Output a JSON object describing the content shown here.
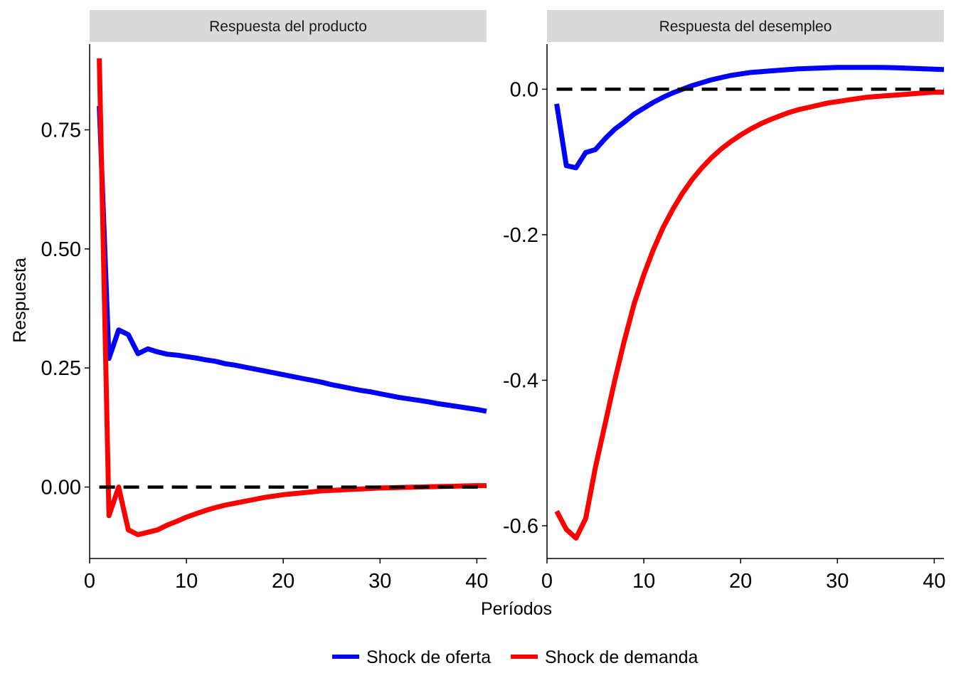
{
  "chart_data": {
    "type": "line",
    "x_title": "Períodos",
    "y_title": "Respuesta",
    "legend": {
      "position": "bottom",
      "items": [
        {
          "label": "Shock de oferta",
          "color": "#0000ff"
        },
        {
          "label": "Shock de demanda",
          "color": "#ff0000"
        }
      ]
    },
    "grid": false,
    "reference_line": {
      "y": 0,
      "style": "dashed",
      "color": "#000000"
    },
    "panels": [
      {
        "id": "producto",
        "title": "Respuesta del producto",
        "xlim": [
          0,
          41
        ],
        "ylim": [
          -0.15,
          0.93
        ],
        "x_ticks": [
          0,
          10,
          20,
          30,
          40
        ],
        "y_ticks": [
          0.0,
          0.25,
          0.5,
          0.75
        ],
        "y_tick_labels": [
          "0.00",
          "0.25",
          "0.50",
          "0.75"
        ],
        "series": [
          {
            "name": "Shock de oferta",
            "color": "#0000ff",
            "x": [
              1,
              2,
              3,
              4,
              5,
              6,
              7,
              8,
              9,
              10,
              11,
              12,
              13,
              14,
              15,
              16,
              17,
              18,
              19,
              20,
              21,
              22,
              23,
              24,
              25,
              26,
              27,
              28,
              29,
              30,
              31,
              32,
              33,
              34,
              35,
              36,
              37,
              38,
              39,
              40,
              41
            ],
            "y": [
              0.8,
              0.27,
              0.33,
              0.32,
              0.28,
              0.29,
              0.284,
              0.279,
              0.277,
              0.274,
              0.271,
              0.267,
              0.264,
              0.259,
              0.256,
              0.252,
              0.248,
              0.244,
              0.24,
              0.236,
              0.232,
              0.228,
              0.224,
              0.22,
              0.215,
              0.211,
              0.207,
              0.203,
              0.2,
              0.196,
              0.192,
              0.188,
              0.185,
              0.182,
              0.179,
              0.175,
              0.172,
              0.169,
              0.166,
              0.163,
              0.159
            ]
          },
          {
            "name": "Shock de demanda",
            "color": "#ff0000",
            "x": [
              1,
              2,
              3,
              4,
              5,
              6,
              7,
              8,
              9,
              10,
              11,
              12,
              13,
              14,
              15,
              16,
              17,
              18,
              19,
              20,
              21,
              22,
              23,
              24,
              25,
              26,
              27,
              28,
              29,
              30,
              31,
              32,
              33,
              34,
              35,
              36,
              37,
              38,
              39,
              40,
              41
            ],
            "y": [
              0.9,
              -0.06,
              0.0,
              -0.09,
              -0.1,
              -0.095,
              -0.09,
              -0.08,
              -0.072,
              -0.063,
              -0.056,
              -0.049,
              -0.043,
              -0.038,
              -0.034,
              -0.03,
              -0.026,
              -0.022,
              -0.019,
              -0.016,
              -0.014,
              -0.012,
              -0.01,
              -0.008,
              -0.007,
              -0.006,
              -0.005,
              -0.004,
              -0.003,
              -0.002,
              -0.0015,
              -0.001,
              -0.0005,
              0.0,
              0.0005,
              0.001,
              0.0015,
              0.002,
              0.0025,
              0.003,
              0.003
            ]
          }
        ]
      },
      {
        "id": "desempleo",
        "title": "Respuesta del desempleo",
        "xlim": [
          0,
          41
        ],
        "ylim": [
          -0.645,
          0.062
        ],
        "x_ticks": [
          0,
          10,
          20,
          30,
          40
        ],
        "y_ticks": [
          0.0,
          -0.2,
          -0.4,
          -0.6
        ],
        "y_tick_labels": [
          "0.0",
          "-0.2",
          "-0.4",
          "-0.6"
        ],
        "series": [
          {
            "name": "Shock de oferta",
            "color": "#0000ff",
            "x": [
              1,
              2,
              3,
              4,
              5,
              6,
              7,
              8,
              9,
              10,
              11,
              12,
              13,
              14,
              15,
              16,
              17,
              18,
              19,
              20,
              21,
              22,
              23,
              24,
              25,
              26,
              27,
              28,
              29,
              30,
              31,
              32,
              33,
              34,
              35,
              36,
              37,
              38,
              39,
              40,
              41
            ],
            "y": [
              -0.02,
              -0.105,
              -0.108,
              -0.087,
              -0.083,
              -0.068,
              -0.055,
              -0.045,
              -0.034,
              -0.026,
              -0.018,
              -0.011,
              -0.005,
              0.0,
              0.005,
              0.009,
              0.013,
              0.016,
              0.019,
              0.021,
              0.023,
              0.024,
              0.025,
              0.026,
              0.027,
              0.028,
              0.0285,
              0.029,
              0.0295,
              0.03,
              0.03,
              0.03,
              0.03,
              0.03,
              0.0298,
              0.0295,
              0.029,
              0.0285,
              0.028,
              0.0275,
              0.027
            ]
          },
          {
            "name": "Shock de demanda",
            "color": "#ff0000",
            "x": [
              1,
              2,
              3,
              4,
              5,
              6,
              7,
              8,
              9,
              10,
              11,
              12,
              13,
              14,
              15,
              16,
              17,
              18,
              19,
              20,
              21,
              22,
              23,
              24,
              25,
              26,
              27,
              28,
              29,
              30,
              31,
              32,
              33,
              34,
              35,
              36,
              37,
              38,
              39,
              40,
              41
            ],
            "y": [
              -0.58,
              -0.605,
              -0.617,
              -0.59,
              -0.52,
              -0.46,
              -0.4,
              -0.345,
              -0.295,
              -0.255,
              -0.22,
              -0.19,
              -0.165,
              -0.143,
              -0.124,
              -0.108,
              -0.094,
              -0.082,
              -0.072,
              -0.063,
              -0.055,
              -0.048,
              -0.042,
              -0.037,
              -0.032,
              -0.028,
              -0.025,
              -0.022,
              -0.019,
              -0.017,
              -0.015,
              -0.013,
              -0.011,
              -0.01,
              -0.009,
              -0.008,
              -0.007,
              -0.006,
              -0.005,
              -0.004,
              -0.004
            ]
          }
        ]
      }
    ]
  }
}
